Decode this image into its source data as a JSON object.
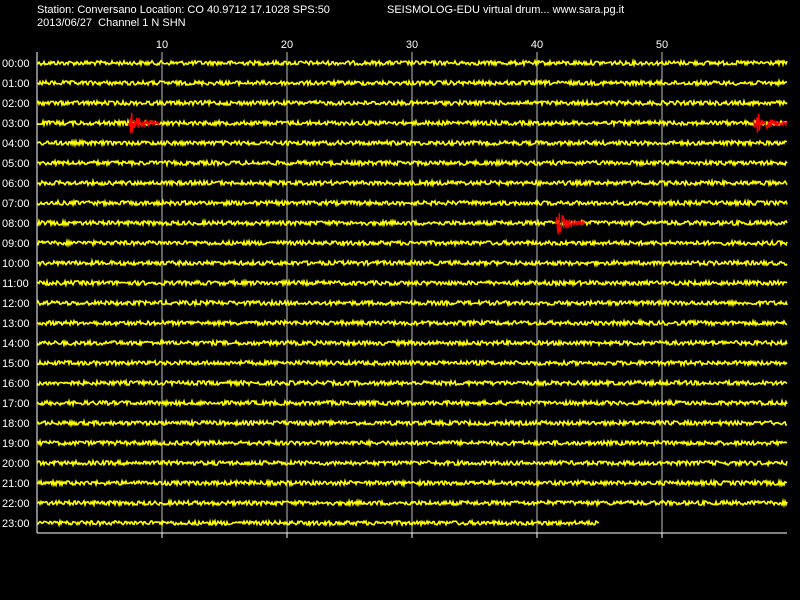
{
  "header": {
    "station_line": "Station: Conversano Location: CO 40.9712 17.1028 SPS:50",
    "date_channel_line": "2013/06/27  Channel 1 N SHN",
    "app_line": "SEISMOLOG-EDU virtual drum... www.sara.pg.it"
  },
  "colors": {
    "background": "#000000",
    "trace": "#ffff00",
    "event": "#ff0000",
    "grid": "#ffffff",
    "text": "#ffffff"
  },
  "chart_data": {
    "type": "line",
    "title": "",
    "xlabel": "",
    "ylabel": "",
    "x_unit": "minutes",
    "xlim": [
      0,
      60
    ],
    "x_ticks": [
      10,
      20,
      30,
      40,
      50
    ],
    "grid": true,
    "rows": [
      "00:00",
      "01:00",
      "02:00",
      "03:00",
      "04:00",
      "05:00",
      "06:00",
      "07:00",
      "08:00",
      "09:00",
      "10:00",
      "11:00",
      "12:00",
      "13:00",
      "14:00",
      "15:00",
      "16:00",
      "17:00",
      "18:00",
      "19:00",
      "20:00",
      "21:00",
      "22:00",
      "23:00"
    ],
    "last_row_end_minute": 45,
    "events": [
      {
        "row": "03:00",
        "start_minute": 7.3,
        "end_minute": 9.8
      },
      {
        "row": "03:00",
        "start_minute": 57.3,
        "end_minute": 60
      },
      {
        "row": "08:00",
        "start_minute": 41.5,
        "end_minute": 43.8
      }
    ]
  }
}
